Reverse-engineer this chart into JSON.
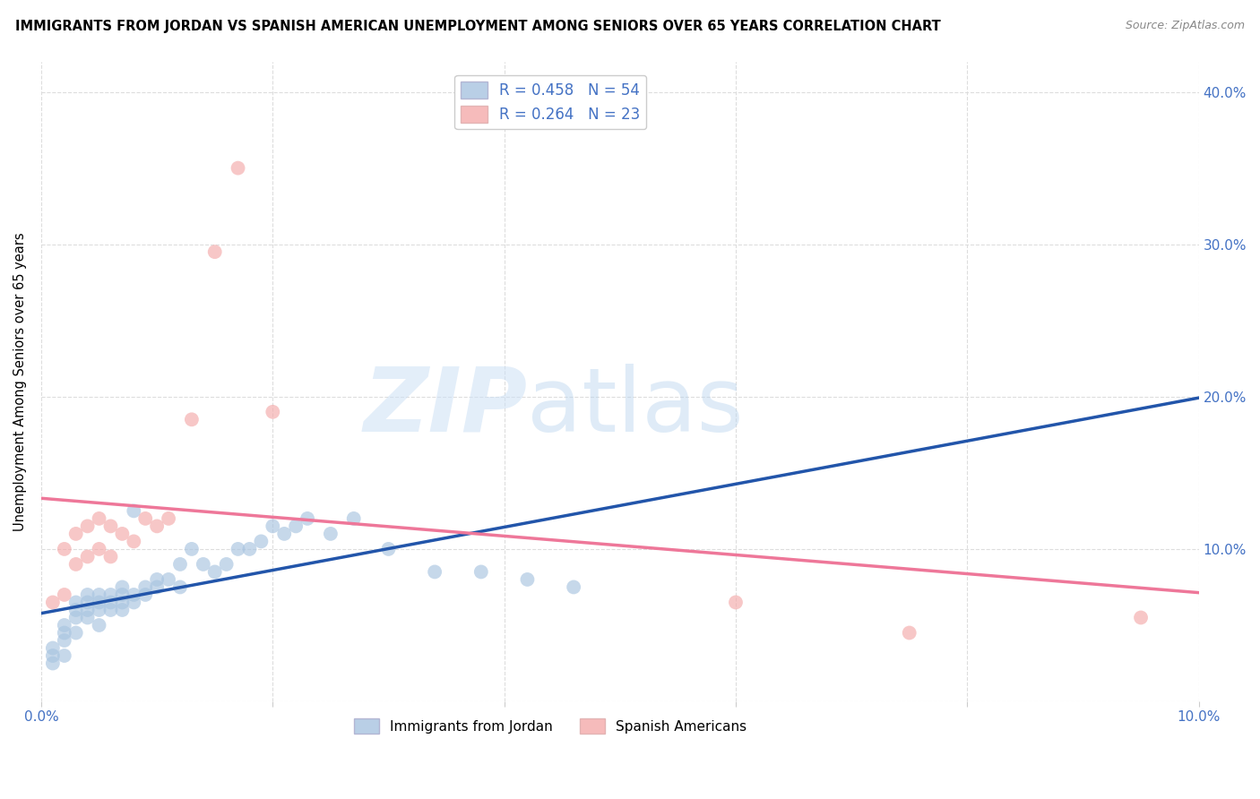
{
  "title": "IMMIGRANTS FROM JORDAN VS SPANISH AMERICAN UNEMPLOYMENT AMONG SENIORS OVER 65 YEARS CORRELATION CHART",
  "source": "Source: ZipAtlas.com",
  "ylabel": "Unemployment Among Seniors over 65 years",
  "xlim": [
    0.0,
    0.1
  ],
  "ylim": [
    0.0,
    0.42
  ],
  "xticks": [
    0.0,
    0.02,
    0.04,
    0.06,
    0.08,
    0.1
  ],
  "xtick_labels": [
    "0.0%",
    "",
    "",
    "",
    "",
    "10.0%"
  ],
  "yticks": [
    0.0,
    0.1,
    0.2,
    0.3,
    0.4
  ],
  "ytick_labels": [
    "",
    "10.0%",
    "20.0%",
    "30.0%",
    "40.0%"
  ],
  "legend1_label": "R = 0.458   N = 54",
  "legend2_label": "R = 0.264   N = 23",
  "blue_color": "#a8c4e0",
  "pink_color": "#f4aaaa",
  "blue_line_color": "#2255aa",
  "pink_line_color": "#ee7799",
  "bottom_legend1": "Immigrants from Jordan",
  "bottom_legend2": "Spanish Americans",
  "blue_x": [
    0.001,
    0.001,
    0.001,
    0.002,
    0.002,
    0.002,
    0.002,
    0.003,
    0.003,
    0.003,
    0.003,
    0.004,
    0.004,
    0.004,
    0.004,
    0.005,
    0.005,
    0.005,
    0.005,
    0.006,
    0.006,
    0.006,
    0.007,
    0.007,
    0.007,
    0.007,
    0.008,
    0.008,
    0.008,
    0.009,
    0.009,
    0.01,
    0.01,
    0.011,
    0.012,
    0.012,
    0.013,
    0.014,
    0.015,
    0.016,
    0.017,
    0.018,
    0.019,
    0.02,
    0.021,
    0.022,
    0.023,
    0.025,
    0.027,
    0.03,
    0.034,
    0.038,
    0.042,
    0.046
  ],
  "blue_y": [
    0.025,
    0.03,
    0.035,
    0.03,
    0.04,
    0.045,
    0.05,
    0.045,
    0.055,
    0.06,
    0.065,
    0.055,
    0.06,
    0.065,
    0.07,
    0.05,
    0.06,
    0.065,
    0.07,
    0.06,
    0.065,
    0.07,
    0.06,
    0.065,
    0.07,
    0.075,
    0.065,
    0.07,
    0.125,
    0.07,
    0.075,
    0.075,
    0.08,
    0.08,
    0.075,
    0.09,
    0.1,
    0.09,
    0.085,
    0.09,
    0.1,
    0.1,
    0.105,
    0.115,
    0.11,
    0.115,
    0.12,
    0.11,
    0.12,
    0.1,
    0.085,
    0.085,
    0.08,
    0.075
  ],
  "pink_x": [
    0.001,
    0.002,
    0.002,
    0.003,
    0.003,
    0.004,
    0.004,
    0.005,
    0.005,
    0.006,
    0.006,
    0.007,
    0.008,
    0.009,
    0.01,
    0.011,
    0.013,
    0.015,
    0.017,
    0.02,
    0.06,
    0.075,
    0.095
  ],
  "pink_y": [
    0.065,
    0.07,
    0.1,
    0.09,
    0.11,
    0.095,
    0.115,
    0.1,
    0.12,
    0.095,
    0.115,
    0.11,
    0.105,
    0.12,
    0.115,
    0.12,
    0.185,
    0.295,
    0.35,
    0.19,
    0.065,
    0.045,
    0.055
  ]
}
